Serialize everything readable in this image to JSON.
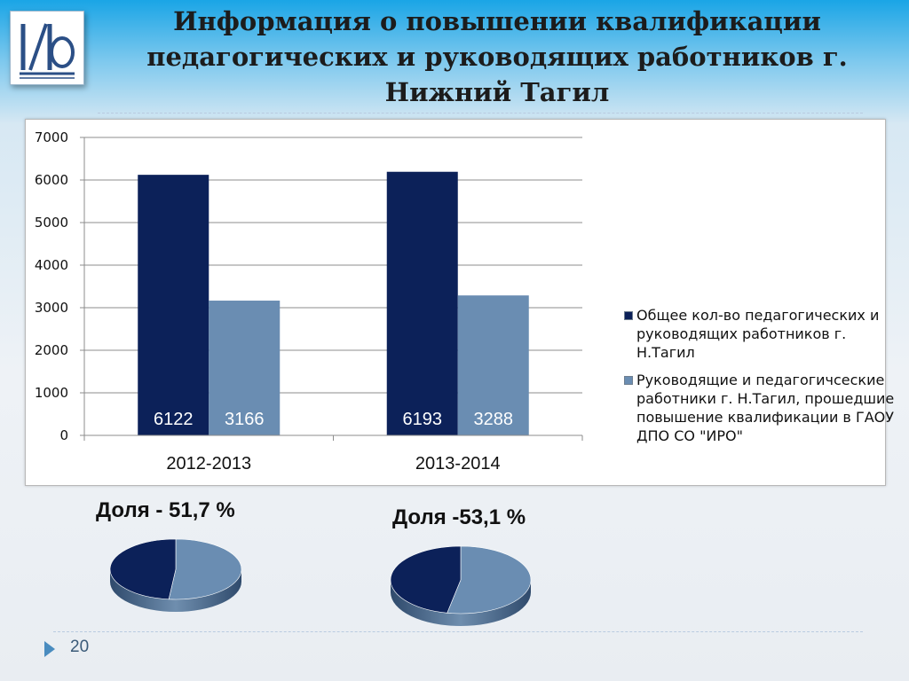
{
  "slide": {
    "title": "Информация о повышении квалификации педагогических и руководящих работников г. Нижний Тагил",
    "page_number": "20"
  },
  "colors": {
    "series_total": "#0c2159",
    "series_trained": "#6a8db2",
    "grid": "#8c8c8c"
  },
  "chart_data": [
    {
      "type": "bar",
      "categories": [
        "2012-2013",
        "2013-2014"
      ],
      "series": [
        {
          "name": "Общее кол-во педагогических и руководящих работников г. Н.Тагил",
          "values": [
            6122,
            6193
          ],
          "data_labels": [
            "6122",
            "6193"
          ]
        },
        {
          "name": "Руководящие и педагогичсеские работники г. Н.Тагил, прошедшие повышение квалификации в ГАОУ ДПО СО \"ИРО\"",
          "values": [
            3166,
            3288
          ],
          "data_labels": [
            "3166",
            "3288"
          ]
        }
      ],
      "ylim": [
        0,
        7000
      ],
      "yticks": [
        0,
        1000,
        2000,
        3000,
        4000,
        5000,
        6000,
        7000
      ],
      "ytick_labels": [
        "0",
        "1000",
        "2000",
        "3000",
        "4000",
        "5000",
        "6000",
        "7000"
      ],
      "grid": true,
      "legend_position": "right",
      "title": "",
      "xlabel": "",
      "ylabel": ""
    },
    {
      "type": "pie",
      "label": "Доля - 51,7 %",
      "share_percent": 51.7
    },
    {
      "type": "pie",
      "label": "Доля -53,1 %",
      "share_percent": 53.1
    }
  ]
}
